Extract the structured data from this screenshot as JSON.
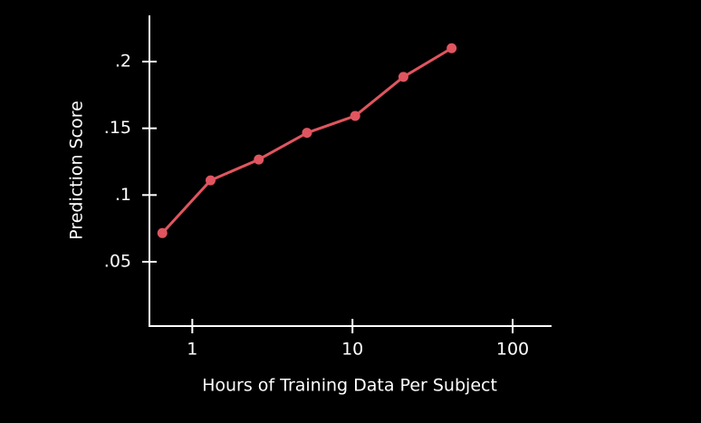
{
  "chart_data": {
    "type": "line",
    "x_label": "Hours of Training Data Per Subject",
    "y_label": "Prediction Score",
    "x": [
      0.65,
      1.3,
      2.6,
      5.2,
      10.4,
      20.8,
      41.6
    ],
    "series": [
      {
        "color": "#e0555f",
        "values": [
          0.0715,
          0.111,
          0.1266,
          0.1466,
          0.1593,
          0.1885,
          0.21
        ]
      }
    ],
    "xscale": "log",
    "xlim": [
      0.54,
      175
    ],
    "xticks": [
      1,
      10,
      100
    ],
    "ylim": [
      0.0018,
      0.2346
    ],
    "yticks": [
      {
        "value": 0.05,
        "label": ".05"
      },
      {
        "value": 0.1,
        "label": ".1"
      },
      {
        "value": 0.15,
        "label": ".15"
      },
      {
        "value": 0.2,
        "label": ".2"
      }
    ]
  }
}
